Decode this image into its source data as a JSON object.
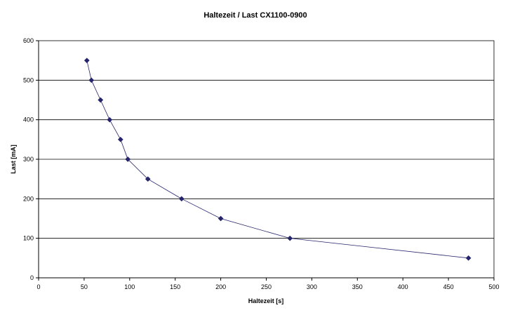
{
  "chart_data": {
    "type": "scatter",
    "title": "Haltezeit / Last CX1100-0900",
    "xlabel": "Haltezeit [s]",
    "ylabel": "Last [mA]",
    "xlim": [
      0,
      500
    ],
    "ylim": [
      0,
      600
    ],
    "xticks": [
      0,
      50,
      100,
      150,
      200,
      250,
      300,
      350,
      400,
      450,
      500
    ],
    "yticks": [
      0,
      100,
      200,
      300,
      400,
      500,
      600
    ],
    "grid": "horizontal",
    "legend": "none",
    "line": true,
    "marker": "diamond",
    "series_color": "#26246a",
    "grid_color": "#000000",
    "points": [
      {
        "x": 53,
        "y": 550
      },
      {
        "x": 58,
        "y": 500
      },
      {
        "x": 68,
        "y": 450
      },
      {
        "x": 78,
        "y": 400
      },
      {
        "x": 90,
        "y": 350
      },
      {
        "x": 98,
        "y": 300
      },
      {
        "x": 120,
        "y": 250
      },
      {
        "x": 157,
        "y": 200
      },
      {
        "x": 200,
        "y": 150
      },
      {
        "x": 276,
        "y": 100
      },
      {
        "x": 472,
        "y": 50
      }
    ]
  }
}
